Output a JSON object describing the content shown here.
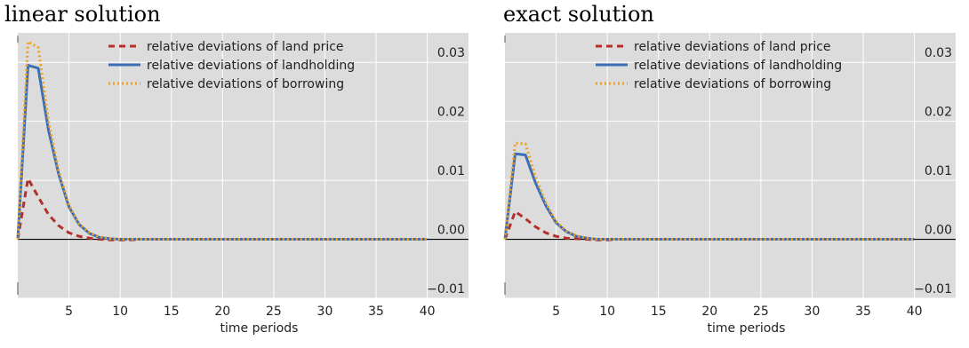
{
  "chart_data": [
    {
      "type": "line",
      "title": "linear solution",
      "xlabel": "time periods",
      "ylabel": "",
      "xlim": [
        0,
        40
      ],
      "ylim": [
        -0.01,
        0.035
      ],
      "xticks": [
        5,
        10,
        15,
        20,
        25,
        30,
        35,
        40
      ],
      "yticks": [
        -0.01,
        0.0,
        0.01,
        0.02,
        0.03
      ],
      "ytick_labels": [
        "−0.01",
        "0.00",
        "0.01",
        "0.02",
        "0.03"
      ],
      "y_axis_side": "right",
      "grid": true,
      "legend_position": "top-center",
      "zero_line": true,
      "series": [
        {
          "name": "relative deviations of land price",
          "color": "#b2312b",
          "dash": "dashed",
          "x": [
            0,
            1,
            2,
            3,
            4,
            5,
            6,
            7,
            8,
            9,
            10,
            11,
            12,
            13,
            14,
            15,
            16,
            17,
            18,
            19,
            20,
            21,
            22,
            23,
            24,
            25,
            26,
            27,
            28,
            29,
            30,
            31,
            32,
            33,
            34,
            35,
            36,
            37,
            38,
            39,
            40
          ],
          "values": [
            0,
            0.0103,
            0.0072,
            0.0042,
            0.0023,
            0.0011,
            0.0005,
            0.0002,
            0.0,
            -0.0001,
            -0.0001,
            -0.0001,
            0,
            0,
            0,
            0,
            0,
            0,
            0,
            0,
            0,
            0,
            0,
            0,
            0,
            0,
            0,
            0,
            0,
            0,
            0,
            0,
            0,
            0,
            0,
            0,
            0,
            0,
            0,
            0,
            0
          ]
        },
        {
          "name": "relative deviations of landholding",
          "color": "#3c6eb4",
          "dash": "solid",
          "x": [
            0,
            1,
            2,
            3,
            4,
            5,
            6,
            7,
            8,
            9,
            10,
            11,
            12,
            13,
            14,
            15,
            16,
            17,
            18,
            19,
            20,
            21,
            22,
            23,
            24,
            25,
            26,
            27,
            28,
            29,
            30,
            31,
            32,
            33,
            34,
            35,
            36,
            37,
            38,
            39,
            40
          ],
          "values": [
            0,
            0.0295,
            0.029,
            0.0185,
            0.011,
            0.0055,
            0.0025,
            0.001,
            0.0003,
            0.0001,
            0,
            0,
            0,
            0,
            0,
            0,
            0,
            0,
            0,
            0,
            0,
            0,
            0,
            0,
            0,
            0,
            0,
            0,
            0,
            0,
            0,
            0,
            0,
            0,
            0,
            0,
            0,
            0,
            0,
            0,
            0
          ]
        },
        {
          "name": "relative deviations of borrowing",
          "color": "#f0a020",
          "dash": "dotted",
          "x": [
            0,
            1,
            2,
            3,
            4,
            5,
            6,
            7,
            8,
            9,
            10,
            11,
            12,
            13,
            14,
            15,
            16,
            17,
            18,
            19,
            20,
            21,
            22,
            23,
            24,
            25,
            26,
            27,
            28,
            29,
            30,
            31,
            32,
            33,
            34,
            35,
            36,
            37,
            38,
            39,
            40
          ],
          "values": [
            0,
            0.0335,
            0.0325,
            0.02,
            0.0115,
            0.0058,
            0.0026,
            0.0011,
            0.0004,
            0.0001,
            0,
            0,
            0,
            0,
            0,
            0,
            0,
            0,
            0,
            0,
            0,
            0,
            0,
            0,
            0,
            0,
            0,
            0,
            0,
            0,
            0,
            0,
            0,
            0,
            0,
            0,
            0,
            0,
            0,
            0,
            0
          ]
        }
      ]
    },
    {
      "type": "line",
      "title": "exact solution",
      "xlabel": "time periods",
      "ylabel": "",
      "xlim": [
        0,
        40
      ],
      "ylim": [
        -0.01,
        0.035
      ],
      "xticks": [
        5,
        10,
        15,
        20,
        25,
        30,
        35,
        40
      ],
      "yticks": [
        -0.01,
        0.0,
        0.01,
        0.02,
        0.03
      ],
      "ytick_labels": [
        "−0.01",
        "0.00",
        "0.01",
        "0.02",
        "0.03"
      ],
      "y_axis_side": "right",
      "grid": true,
      "legend_position": "top-center",
      "zero_line": true,
      "series": [
        {
          "name": "relative deviations of land price",
          "color": "#b2312b",
          "dash": "dashed",
          "x": [
            0,
            1,
            2,
            3,
            4,
            5,
            6,
            7,
            8,
            9,
            10,
            11,
            12,
            13,
            14,
            15,
            16,
            17,
            18,
            19,
            20,
            21,
            22,
            23,
            24,
            25,
            26,
            27,
            28,
            29,
            30,
            31,
            32,
            33,
            34,
            35,
            36,
            37,
            38,
            39,
            40
          ],
          "values": [
            0,
            0.0047,
            0.0035,
            0.0021,
            0.0011,
            0.0005,
            0.0002,
            0.0001,
            0,
            -0.0001,
            -0.0001,
            0,
            0,
            0,
            0,
            0,
            0,
            0,
            0,
            0,
            0,
            0,
            0,
            0,
            0,
            0,
            0,
            0,
            0,
            0,
            0,
            0,
            0,
            0,
            0,
            0,
            0,
            0,
            0,
            0,
            0
          ]
        },
        {
          "name": "relative deviations of landholding",
          "color": "#3c6eb4",
          "dash": "solid",
          "x": [
            0,
            1,
            2,
            3,
            4,
            5,
            6,
            7,
            8,
            9,
            10,
            11,
            12,
            13,
            14,
            15,
            16,
            17,
            18,
            19,
            20,
            21,
            22,
            23,
            24,
            25,
            26,
            27,
            28,
            29,
            30,
            31,
            32,
            33,
            34,
            35,
            36,
            37,
            38,
            39,
            40
          ],
          "values": [
            0,
            0.0145,
            0.0143,
            0.0095,
            0.0057,
            0.0028,
            0.0013,
            0.0005,
            0.0002,
            0,
            0,
            0,
            0,
            0,
            0,
            0,
            0,
            0,
            0,
            0,
            0,
            0,
            0,
            0,
            0,
            0,
            0,
            0,
            0,
            0,
            0,
            0,
            0,
            0,
            0,
            0,
            0,
            0,
            0,
            0,
            0
          ]
        },
        {
          "name": "relative deviations of borrowing",
          "color": "#f0a020",
          "dash": "dotted",
          "x": [
            0,
            1,
            2,
            3,
            4,
            5,
            6,
            7,
            8,
            9,
            10,
            11,
            12,
            13,
            14,
            15,
            16,
            17,
            18,
            19,
            20,
            21,
            22,
            23,
            24,
            25,
            26,
            27,
            28,
            29,
            30,
            31,
            32,
            33,
            34,
            35,
            36,
            37,
            38,
            39,
            40
          ],
          "values": [
            0,
            0.0163,
            0.0162,
            0.0105,
            0.0062,
            0.003,
            0.0014,
            0.0006,
            0.0002,
            0,
            0,
            0,
            0,
            0,
            0,
            0,
            0,
            0,
            0,
            0,
            0,
            0,
            0,
            0,
            0,
            0,
            0,
            0,
            0,
            0,
            0,
            0,
            0,
            0,
            0,
            0,
            0,
            0,
            0,
            0,
            0
          ]
        }
      ]
    }
  ]
}
